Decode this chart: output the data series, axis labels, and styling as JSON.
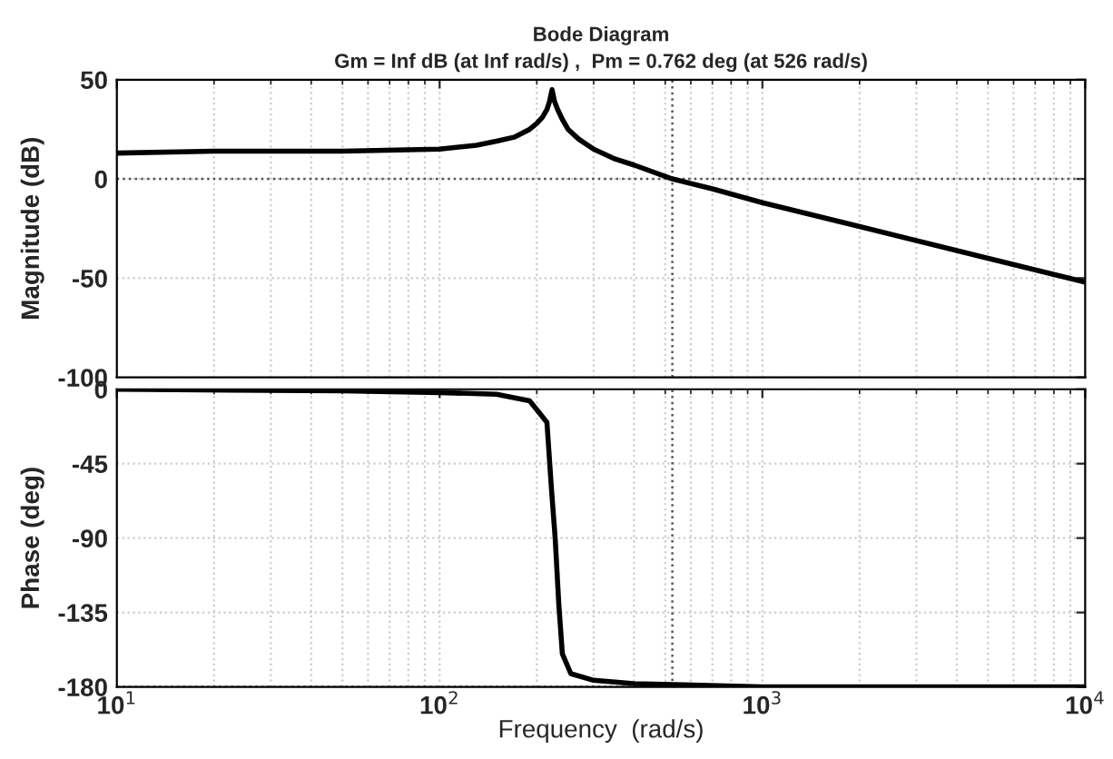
{
  "chart_data": [
    {
      "type": "line",
      "title": "Bode Diagram",
      "subtitle": "Gm = Inf dB (at Inf rad/s) ,  Pm = 0.762 deg (at 526 rad/s)",
      "ylabel": "Magnitude (dB)",
      "log": "x",
      "series": [
        {
          "color": "#000000",
          "x": [
            10,
            20,
            50,
            100,
            130,
            150,
            170,
            180,
            190,
            200,
            208,
            215,
            219,
            223,
            227,
            232,
            240,
            250,
            270,
            300,
            350,
            400,
            526,
            700,
            1000,
            2000,
            5000,
            10000
          ],
          "values": [
            13,
            14,
            14,
            15,
            17,
            19,
            21,
            23,
            25,
            28,
            31,
            35,
            39,
            45,
            39,
            35,
            30,
            25,
            20,
            15,
            10,
            7,
            0,
            -5,
            -12,
            -24,
            -40,
            -52
          ]
        }
      ],
      "xlim": [
        10,
        10000
      ],
      "xticks": [
        10,
        100,
        1000,
        10000
      ],
      "ylim": [
        -100,
        50
      ],
      "yticks": [
        -100,
        -50,
        0,
        50
      ],
      "grid": true,
      "tick_labels": "y",
      "ref_lines": [
        {
          "axis": "y",
          "value": 0,
          "color": "#555555",
          "line_style": "dotted"
        },
        {
          "axis": "x",
          "value": 526,
          "color": "#555555",
          "line_style": "dotted"
        }
      ]
    },
    {
      "type": "line",
      "xlabel": "Frequency  (rad/s)",
      "ylabel": "Phase (deg)",
      "log": "x",
      "series": [
        {
          "color": "#000000",
          "x": [
            10,
            50,
            100,
            150,
            190,
            205,
            215,
            222,
            228,
            234,
            240,
            255,
            300,
            400,
            1000,
            10000
          ],
          "values": [
            0,
            -1,
            -2,
            -3,
            -7,
            -15,
            -20,
            -60,
            -90,
            -130,
            -160,
            -172,
            -176,
            -178,
            -180,
            -180
          ]
        }
      ],
      "xlim": [
        10,
        10000
      ],
      "xticks": [
        {
          "value": 10,
          "label": "10$^{1}$"
        },
        {
          "value": 100,
          "label": "10$^{2}$"
        },
        {
          "value": 1000,
          "label": "10$^{3}$"
        },
        {
          "value": 10000,
          "label": "10$^{4}$"
        }
      ],
      "ylim": [
        -180,
        0
      ],
      "yticks": [
        -180,
        -135,
        -90,
        -45,
        0
      ],
      "grid": true,
      "ref_lines": [
        {
          "axis": "y",
          "value": -180,
          "color": "#555555",
          "line_style": "dotted"
        },
        {
          "axis": "x",
          "value": 526,
          "color": "#555555",
          "line_style": "dotted"
        }
      ]
    }
  ]
}
